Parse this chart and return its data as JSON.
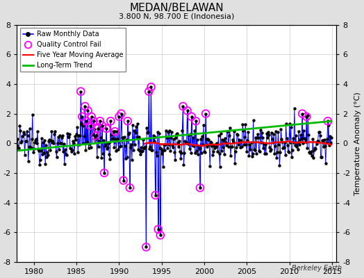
{
  "title": "MEDAN/BELAWAN",
  "subtitle": "3.800 N, 98.700 E (Indonesia)",
  "ylabel": "Temperature Anomaly (°C)",
  "xlabel_years": [
    1980,
    1985,
    1990,
    1995,
    2000,
    2005,
    2010,
    2015
  ],
  "ylim": [
    -8,
    8
  ],
  "xlim": [
    1978.0,
    2015.5
  ],
  "yticks": [
    -8,
    -6,
    -4,
    -2,
    0,
    2,
    4,
    6,
    8
  ],
  "background_color": "#e0e0e0",
  "plot_bg_color": "#ffffff",
  "raw_color": "#0000ff",
  "qc_color": "#ff00ff",
  "ma_color": "#ff0000",
  "trend_color": "#00bb00",
  "watermark": "Berkeley Earth",
  "seed": 12345
}
